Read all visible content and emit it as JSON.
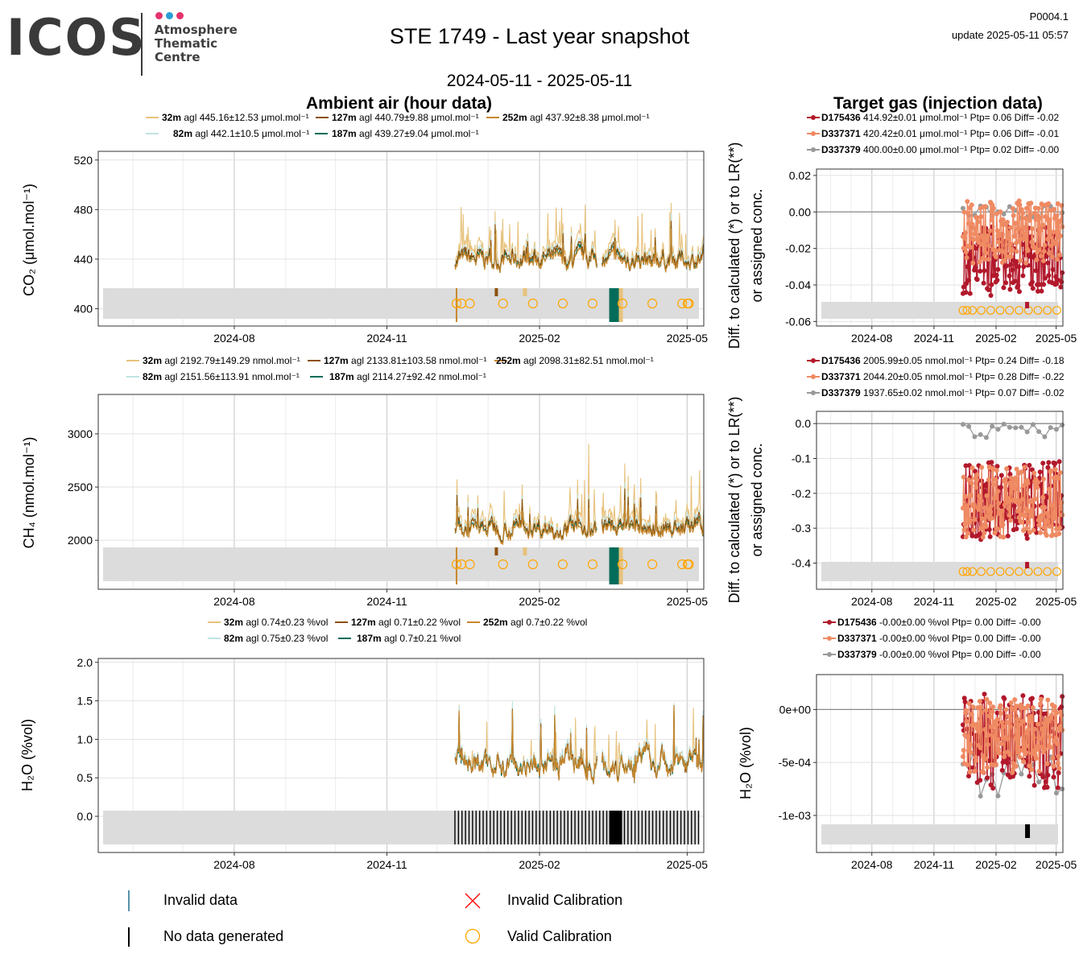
{
  "header": {
    "logo_text": "ICOS",
    "logo_lines": [
      "Atmosphere",
      "Thematic",
      "Centre"
    ],
    "logo_dot_colors": [
      "#e2336b",
      "#2a9fd6",
      "#e2336b"
    ],
    "title": "STE 1749 - Last year snapshot",
    "date_range": "2024-05-11 - 2025-05-11",
    "code": "P0004.1",
    "update": "update  2025-05-11 05:57",
    "ambient_title": "Ambient air (hour data)",
    "target_title": "Target gas (injection data)"
  },
  "axis_labels": {
    "co2": "CO₂ (μmol.mol⁻¹)",
    "ch4": "CH₄ (nmol.mol⁻¹)",
    "h2o": "H₂O (%vol)",
    "diff_line1": "Diff. to calculated (*) or to LR(**)",
    "diff_line2": "or assigned conc.",
    "h2o_right": "H₂O (%vol)"
  },
  "colors": {
    "h32": "#e7c27c",
    "h82": "#bfe3e3",
    "h127": "#8c510a",
    "h187": "#016c59",
    "h252": "#c8872d",
    "t1": "#b2182b",
    "t2": "#ef8a62",
    "t3": "#999999",
    "calib": "#ffa500",
    "invalid_cal": "#ff0000",
    "invalid_data": "#1f6f8b",
    "band": "#dcdcdc"
  },
  "chart_data": [
    {
      "id": "co2-ambient",
      "type": "line",
      "ylabel": "CO₂ (μmol.mol⁻¹)",
      "x_ticks": [
        "2024-08",
        "2024-11",
        "2025-02",
        "2025-05"
      ],
      "y_ticks": [
        400,
        440,
        480,
        520
      ],
      "ylim": [
        386,
        527
      ],
      "data_start": "2024-12-12",
      "data_end": "2025-05-11",
      "series": [
        {
          "height": "32m",
          "label": "32m agl 445.16±12.53 μmol.mol⁻¹",
          "mean": 445.16,
          "sd": 12.53
        },
        {
          "height": "82m",
          "label": "82m agl 442.1±10.5 μmol.mol⁻¹",
          "mean": 442.1,
          "sd": 10.5
        },
        {
          "height": "127m",
          "label": "127m agl 440.79±9.88 μmol.mol⁻¹",
          "mean": 440.79,
          "sd": 9.88
        },
        {
          "height": "187m",
          "label": "187m agl 439.27±9.04 μmol.mol⁻¹",
          "mean": 439.27,
          "sd": 9.04
        },
        {
          "height": "252m",
          "label": "252m agl 437.92±8.38 μmol.mol⁻¹",
          "mean": 437.92,
          "sd": 8.38
        }
      ]
    },
    {
      "id": "ch4-ambient",
      "type": "line",
      "ylabel": "CH₄ (nmol.mol⁻¹)",
      "x_ticks": [
        "2024-08",
        "2024-11",
        "2025-02",
        "2025-05"
      ],
      "y_ticks": [
        2000,
        2500,
        3000
      ],
      "ylim": [
        1540,
        3370
      ],
      "data_start": "2024-12-12",
      "data_end": "2025-05-11",
      "series": [
        {
          "height": "32m",
          "label": "32m agl 2192.79±149.29 nmol.mol⁻¹",
          "mean": 2192.79,
          "sd": 149.29
        },
        {
          "height": "82m",
          "label": "82m agl 2151.56±113.91 nmol.mol⁻¹",
          "mean": 2151.56,
          "sd": 113.91
        },
        {
          "height": "127m",
          "label": "127m agl 2133.81±103.58 nmol.mol⁻¹",
          "mean": 2133.81,
          "sd": 103.58
        },
        {
          "height": "187m",
          "label": "187m agl 2114.27±92.42 nmol.mol⁻¹",
          "mean": 2114.27,
          "sd": 92.42
        },
        {
          "height": "252m",
          "label": "252m agl 2098.31±82.51 nmol.mol⁻¹",
          "mean": 2098.31,
          "sd": 82.51
        }
      ]
    },
    {
      "id": "h2o-ambient",
      "type": "line",
      "ylabel": "H₂O (%vol)",
      "x_ticks": [
        "2024-08",
        "2024-11",
        "2025-02",
        "2025-05"
      ],
      "y_ticks": [
        "0.0",
        "0.5",
        "1.0",
        "1.5",
        "2.0"
      ],
      "ylim": [
        -0.47,
        2.05
      ],
      "data_start": "2024-12-12",
      "data_end": "2025-05-11",
      "series": [
        {
          "height": "32m",
          "label": "32m agl 0.74±0.23 %vol",
          "mean": 0.74,
          "sd": 0.23
        },
        {
          "height": "82m",
          "label": "82m agl 0.75±0.23 %vol",
          "mean": 0.75,
          "sd": 0.23
        },
        {
          "height": "127m",
          "label": "127m agl 0.71±0.22 %vol",
          "mean": 0.71,
          "sd": 0.22
        },
        {
          "height": "187m",
          "label": "187m agl 0.7±0.21 %vol",
          "mean": 0.7,
          "sd": 0.21
        },
        {
          "height": "252m",
          "label": "252m agl 0.7±0.22 %vol",
          "mean": 0.7,
          "sd": 0.22
        }
      ]
    },
    {
      "id": "co2-target",
      "type": "line",
      "ylabel": "Diff. to calculated (*) or to LR(**) or assigned conc.",
      "x_ticks": [
        "2024-08",
        "2024-11",
        "2025-02",
        "2025-05"
      ],
      "y_ticks": [
        "0.02",
        "0.00",
        "-0.02",
        "-0.04",
        "-0.06"
      ],
      "ylim": [
        -0.0625,
        0.0235
      ],
      "series": [
        {
          "name": "D175436",
          "label": "D175436 414.92±0.01 μmol.mol⁻¹ Ptp= 0.06 Diff= -0.02",
          "diff": -0.02
        },
        {
          "name": "D337371",
          "label": "D337371 420.42±0.01 μmol.mol⁻¹ Ptp= 0.06 Diff= -0.01",
          "diff": -0.01
        },
        {
          "name": "D337379",
          "label": "D337379 400.00±0.00 μmol.mol⁻¹ Ptp= 0.02 Diff= -0.00",
          "diff": 0.0
        }
      ]
    },
    {
      "id": "ch4-target",
      "type": "line",
      "ylabel": "Diff. to calculated (*) or to LR(**) or assigned conc.",
      "x_ticks": [
        "2024-08",
        "2024-11",
        "2025-02",
        "2025-05"
      ],
      "y_ticks": [
        "0.0",
        "-0.1",
        "-0.2",
        "-0.3",
        "-0.4"
      ],
      "ylim": [
        -0.475,
        0.035
      ],
      "series": [
        {
          "name": "D175436",
          "label": "D175436 2005.99±0.05 nmol.mol⁻¹ Ptp= 0.24 Diff= -0.18",
          "diff": -0.18
        },
        {
          "name": "D337371",
          "label": "D337371 2044.20±0.05 nmol.mol⁻¹ Ptp= 0.28 Diff= -0.22",
          "diff": -0.22
        },
        {
          "name": "D337379",
          "label": "D337379 1937.65±0.02 nmol.mol⁻¹ Ptp= 0.07 Diff= -0.02",
          "diff": -0.02
        }
      ]
    },
    {
      "id": "h2o-target",
      "type": "line",
      "ylabel": "H₂O (%vol)",
      "x_ticks": [
        "2024-08",
        "2024-11",
        "2025-02",
        "2025-05"
      ],
      "y_ticks": [
        "0e+00",
        "-5e-04",
        "-1e-03"
      ],
      "ylim": [
        -0.00135,
        0.00033
      ],
      "series": [
        {
          "name": "D175436",
          "label": "D175436 -0.00±0.00 %vol Ptp= 0.00 Diff= -0.00",
          "diff": 0.0
        },
        {
          "name": "D337371",
          "label": "D337371 -0.00±0.00 %vol Ptp= 0.00 Diff= -0.00",
          "diff": 0.0
        },
        {
          "name": "D337379",
          "label": "D337379 -0.00±0.00 %vol Ptp= 0.00 Diff= -0.00",
          "diff": 0.0
        }
      ]
    }
  ],
  "legend": {
    "invalid_data": "Invalid data",
    "no_data": "No data generated",
    "invalid_calibration": "Invalid Calibration",
    "valid_calibration": "Valid Calibration"
  }
}
